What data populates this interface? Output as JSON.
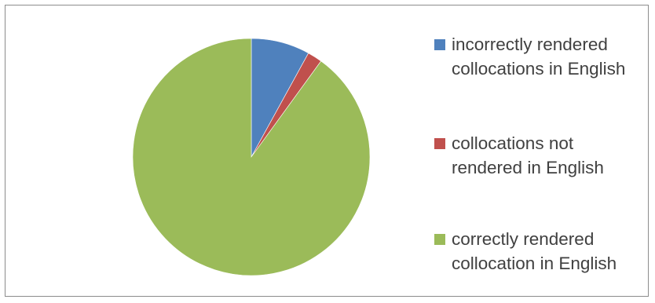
{
  "chart_data": {
    "type": "pie",
    "title": "",
    "categories": [
      "incorrectly rendered collocations in English",
      "collocations not rendered in English",
      "correctly rendered collocation in English"
    ],
    "values": [
      8,
      2,
      90
    ],
    "unit": "%",
    "start_angle_deg": 0,
    "direction": "clockwise",
    "legend_position": "right",
    "colors": [
      "#4f81bd",
      "#c0504d",
      "#9bbb59"
    ],
    "border_color": "#8c8c8c"
  }
}
